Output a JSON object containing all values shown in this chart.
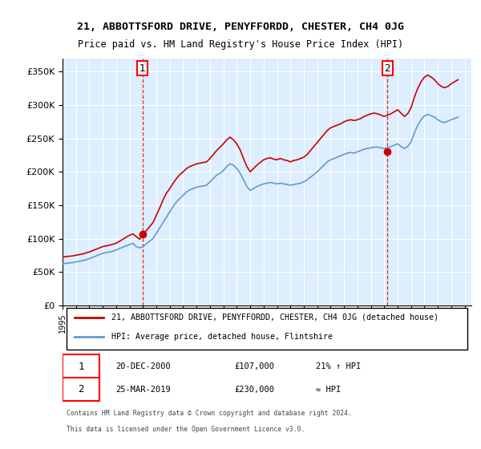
{
  "title": "21, ABBOTTSFORD DRIVE, PENYFFORDD, CHESTER, CH4 0JG",
  "subtitle": "Price paid vs. HM Land Registry's House Price Index (HPI)",
  "ylabel_ticks": [
    "£0",
    "£50K",
    "£100K",
    "£150K",
    "£200K",
    "£250K",
    "£300K",
    "£350K"
  ],
  "ytick_values": [
    0,
    50000,
    100000,
    150000,
    200000,
    250000,
    300000,
    350000
  ],
  "ylim": [
    0,
    370000
  ],
  "xlim_start": 1995.0,
  "xlim_end": 2025.5,
  "legend_line1": "21, ABBOTTSFORD DRIVE, PENYFFORDD, CHESTER, CH4 0JG (detached house)",
  "legend_line2": "HPI: Average price, detached house, Flintshire",
  "annotation1_label": "1",
  "annotation1_date": "20-DEC-2000",
  "annotation1_price": "£107,000",
  "annotation1_pct": "21% ↑ HPI",
  "annotation2_label": "2",
  "annotation2_date": "25-MAR-2019",
  "annotation2_price": "£230,000",
  "annotation2_pct": "≈ HPI",
  "footer1": "Contains HM Land Registry data © Crown copyright and database right 2024.",
  "footer2": "This data is licensed under the Open Government Licence v3.0.",
  "color_red": "#cc0000",
  "color_blue": "#6699cc",
  "color_bg": "#ddeeff",
  "purchase1_x": 2000.97,
  "purchase1_y": 107000,
  "purchase2_x": 2019.23,
  "purchase2_y": 230000,
  "hpi_years": [
    1995.0,
    1995.25,
    1995.5,
    1995.75,
    1996.0,
    1996.25,
    1996.5,
    1996.75,
    1997.0,
    1997.25,
    1997.5,
    1997.75,
    1998.0,
    1998.25,
    1998.5,
    1998.75,
    1999.0,
    1999.25,
    1999.5,
    1999.75,
    2000.0,
    2000.25,
    2000.5,
    2000.75,
    2001.0,
    2001.25,
    2001.5,
    2001.75,
    2002.0,
    2002.25,
    2002.5,
    2002.75,
    2003.0,
    2003.25,
    2003.5,
    2003.75,
    2004.0,
    2004.25,
    2004.5,
    2004.75,
    2005.0,
    2005.25,
    2005.5,
    2005.75,
    2006.0,
    2006.25,
    2006.5,
    2006.75,
    2007.0,
    2007.25,
    2007.5,
    2007.75,
    2008.0,
    2008.25,
    2008.5,
    2008.75,
    2009.0,
    2009.25,
    2009.5,
    2009.75,
    2010.0,
    2010.25,
    2010.5,
    2010.75,
    2011.0,
    2011.25,
    2011.5,
    2011.75,
    2012.0,
    2012.25,
    2012.5,
    2012.75,
    2013.0,
    2013.25,
    2013.5,
    2013.75,
    2014.0,
    2014.25,
    2014.5,
    2014.75,
    2015.0,
    2015.25,
    2015.5,
    2015.75,
    2016.0,
    2016.25,
    2016.5,
    2016.75,
    2017.0,
    2017.25,
    2017.5,
    2017.75,
    2018.0,
    2018.25,
    2018.5,
    2018.75,
    2019.0,
    2019.25,
    2019.5,
    2019.75,
    2020.0,
    2020.25,
    2020.5,
    2020.75,
    2021.0,
    2021.25,
    2021.5,
    2021.75,
    2022.0,
    2022.25,
    2022.5,
    2022.75,
    2023.0,
    2023.25,
    2023.5,
    2023.75,
    2024.0,
    2024.25,
    2024.5
  ],
  "hpi_values": [
    62000,
    63000,
    63500,
    64000,
    65000,
    66000,
    67000,
    68000,
    70000,
    72000,
    74000,
    76000,
    78000,
    79000,
    80000,
    81000,
    83000,
    85000,
    87000,
    89000,
    91000,
    93000,
    88000,
    86000,
    88000,
    92000,
    96000,
    100000,
    108000,
    116000,
    124000,
    132000,
    140000,
    148000,
    155000,
    160000,
    165000,
    170000,
    173000,
    175000,
    177000,
    178000,
    179000,
    180000,
    185000,
    190000,
    195000,
    198000,
    202000,
    208000,
    212000,
    210000,
    205000,
    198000,
    188000,
    178000,
    172000,
    175000,
    178000,
    180000,
    182000,
    183000,
    184000,
    183000,
    182000,
    183000,
    182000,
    181000,
    180000,
    181000,
    182000,
    183000,
    185000,
    188000,
    192000,
    196000,
    200000,
    205000,
    210000,
    215000,
    218000,
    220000,
    222000,
    224000,
    226000,
    228000,
    229000,
    228000,
    230000,
    232000,
    234000,
    235000,
    236000,
    237000,
    237000,
    236000,
    235000,
    236000,
    238000,
    240000,
    242000,
    238000,
    235000,
    238000,
    245000,
    258000,
    270000,
    278000,
    284000,
    286000,
    284000,
    282000,
    278000,
    275000,
    274000,
    276000,
    278000,
    280000,
    282000
  ],
  "price_years": [
    1995.0,
    1995.25,
    1995.5,
    1995.75,
    1996.0,
    1996.25,
    1996.5,
    1996.75,
    1997.0,
    1997.25,
    1997.5,
    1997.75,
    1998.0,
    1998.25,
    1998.5,
    1998.75,
    1999.0,
    1999.25,
    1999.5,
    1999.75,
    2000.0,
    2000.25,
    2000.5,
    2000.75,
    2001.0,
    2001.25,
    2001.5,
    2001.75,
    2002.0,
    2002.25,
    2002.5,
    2002.75,
    2003.0,
    2003.25,
    2003.5,
    2003.75,
    2004.0,
    2004.25,
    2004.5,
    2004.75,
    2005.0,
    2005.25,
    2005.5,
    2005.75,
    2006.0,
    2006.25,
    2006.5,
    2006.75,
    2007.0,
    2007.25,
    2007.5,
    2007.75,
    2008.0,
    2008.25,
    2008.5,
    2008.75,
    2009.0,
    2009.25,
    2009.5,
    2009.75,
    2010.0,
    2010.25,
    2010.5,
    2010.75,
    2011.0,
    2011.25,
    2011.5,
    2011.75,
    2012.0,
    2012.25,
    2012.5,
    2012.75,
    2013.0,
    2013.25,
    2013.5,
    2013.75,
    2014.0,
    2014.25,
    2014.5,
    2014.75,
    2015.0,
    2015.25,
    2015.5,
    2015.75,
    2016.0,
    2016.25,
    2016.5,
    2016.75,
    2017.0,
    2017.25,
    2017.5,
    2017.75,
    2018.0,
    2018.25,
    2018.5,
    2018.75,
    2019.0,
    2019.25,
    2019.5,
    2019.75,
    2020.0,
    2020.25,
    2020.5,
    2020.75,
    2021.0,
    2021.25,
    2021.5,
    2021.75,
    2022.0,
    2022.25,
    2022.5,
    2022.75,
    2023.0,
    2023.25,
    2023.5,
    2023.75,
    2024.0,
    2024.25,
    2024.5
  ],
  "price_values": [
    72000,
    73000,
    73500,
    74000,
    75000,
    76000,
    77000,
    78500,
    80000,
    82000,
    84000,
    86000,
    88000,
    89000,
    90000,
    91500,
    93000,
    96000,
    99000,
    102000,
    105000,
    107000,
    103000,
    99000,
    107000,
    112000,
    118000,
    124000,
    135000,
    146000,
    158000,
    168000,
    175000,
    183000,
    190000,
    196000,
    200000,
    205000,
    208000,
    210000,
    212000,
    213000,
    214000,
    215000,
    220000,
    226000,
    232000,
    237000,
    242000,
    248000,
    252000,
    248000,
    242000,
    233000,
    220000,
    208000,
    200000,
    205000,
    210000,
    214000,
    218000,
    220000,
    221000,
    219000,
    218000,
    220000,
    218000,
    217000,
    215000,
    217000,
    218000,
    220000,
    222000,
    226000,
    232000,
    238000,
    244000,
    250000,
    256000,
    262000,
    266000,
    268000,
    270000,
    272000,
    275000,
    277000,
    278000,
    277000,
    278000,
    280000,
    283000,
    285000,
    287000,
    288000,
    287000,
    285000,
    283000,
    285000,
    287000,
    290000,
    293000,
    288000,
    283000,
    287000,
    296000,
    312000,
    325000,
    335000,
    342000,
    345000,
    342000,
    338000,
    332000,
    328000,
    326000,
    328000,
    332000,
    335000,
    338000
  ]
}
